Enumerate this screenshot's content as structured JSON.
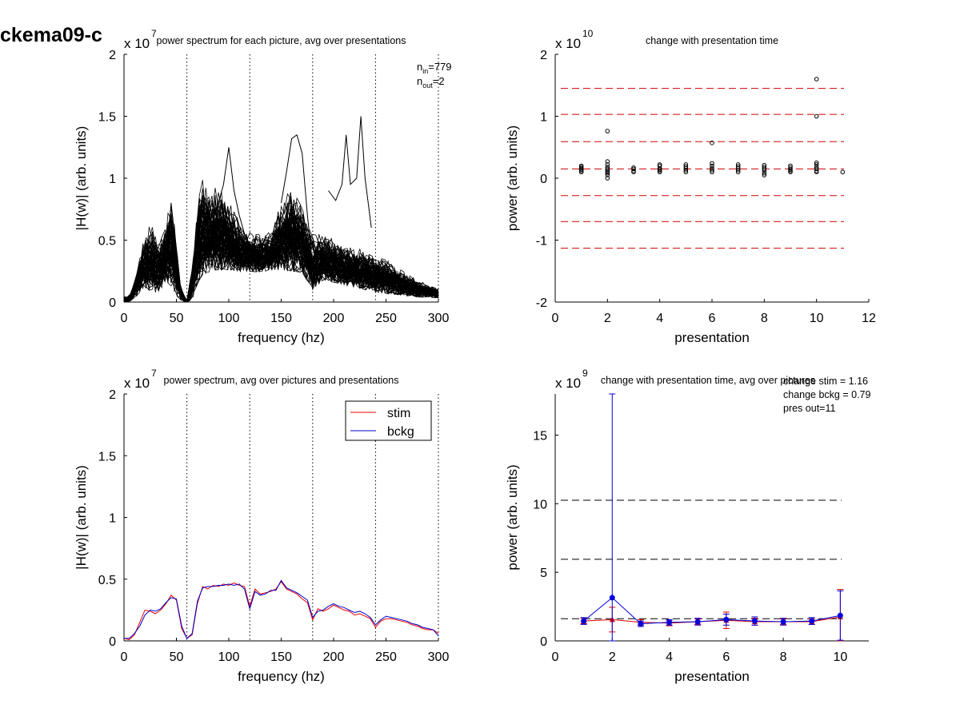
{
  "figure": {
    "label": "ckema09-c"
  },
  "chart_data": [
    {
      "type": "line",
      "title": "power spectrum for each picture, avg over presentations",
      "xlabel": "frequency (hz)",
      "ylabel": "|H(w)| (arb. units)",
      "exponent": "7",
      "xlim": [
        0,
        300
      ],
      "ylim": [
        0,
        2
      ],
      "xticks": [
        0,
        50,
        100,
        150,
        200,
        250,
        300
      ],
      "yticks": [
        0,
        0.5,
        1,
        1.5,
        2
      ],
      "ytick_labels": [
        "0",
        "0.5",
        "1",
        "1.5",
        "2"
      ],
      "vlines": [
        60,
        120,
        180,
        240,
        300
      ],
      "annotation": {
        "n_in": "779",
        "n_out": "2",
        "n_label": "n",
        "in_sub": "in",
        "out_sub": "out"
      },
      "envelope": {
        "x": [
          0,
          5,
          12,
          17,
          20,
          23,
          27,
          30,
          33,
          37,
          40,
          43,
          46,
          50,
          55,
          60,
          65,
          70,
          75,
          80,
          90,
          100,
          110,
          120,
          130,
          140,
          150,
          160,
          170,
          180,
          190,
          200,
          210,
          220,
          230,
          240,
          250,
          260,
          270,
          280,
          290,
          300
        ],
        "low": [
          0.0,
          0.0,
          0.05,
          0.1,
          0.12,
          0.1,
          0.08,
          0.07,
          0.09,
          0.12,
          0.15,
          0.15,
          0.12,
          0.05,
          0.01,
          0.0,
          0.02,
          0.15,
          0.22,
          0.24,
          0.26,
          0.26,
          0.25,
          0.25,
          0.24,
          0.26,
          0.26,
          0.25,
          0.24,
          0.1,
          0.18,
          0.16,
          0.14,
          0.12,
          0.1,
          0.08,
          0.07,
          0.06,
          0.05,
          0.04,
          0.04,
          0.03
        ],
        "high": [
          0.05,
          0.05,
          0.25,
          0.5,
          0.6,
          0.68,
          0.7,
          0.62,
          0.55,
          0.6,
          0.72,
          0.9,
          1.0,
          0.5,
          0.1,
          0.02,
          0.3,
          0.9,
          1.1,
          1.0,
          1.0,
          0.9,
          0.7,
          0.6,
          0.58,
          0.6,
          0.9,
          1.0,
          0.85,
          0.6,
          0.6,
          0.55,
          0.5,
          0.48,
          0.45,
          0.4,
          0.38,
          0.3,
          0.25,
          0.2,
          0.15,
          0.12
        ]
      },
      "outliers": [
        {
          "x": [
            150,
            155,
            160,
            165,
            170,
            175,
            180
          ],
          "y": [
            0.8,
            1.05,
            1.32,
            1.35,
            1.2,
            0.7,
            0.3
          ]
        },
        {
          "x": [
            195,
            202,
            208,
            212,
            216,
            222,
            226,
            230,
            236
          ],
          "y": [
            0.9,
            0.82,
            0.95,
            1.35,
            0.95,
            1.0,
            1.5,
            1.0,
            0.6
          ]
        },
        {
          "x": [
            85,
            90,
            95,
            100,
            105,
            110,
            115
          ],
          "y": [
            0.55,
            0.8,
            0.95,
            1.25,
            0.9,
            0.7,
            0.55
          ]
        }
      ]
    },
    {
      "type": "scatter",
      "title": "change with presentation time",
      "xlabel": "presentation",
      "ylabel": "power (arb. units)",
      "exponent": "10",
      "xlim": [
        0,
        12
      ],
      "ylim": [
        -2,
        2
      ],
      "xticks": [
        0,
        2,
        4,
        6,
        8,
        10,
        12
      ],
      "yticks": [
        -2,
        -1,
        0,
        1,
        2
      ],
      "ytick_labels": [
        "-2",
        "-1",
        "0",
        "1",
        "2"
      ],
      "hlines": [
        1.45,
        1.03,
        0.59,
        0.15,
        -0.28,
        -0.7,
        -1.13
      ],
      "hline_color": "#d00000",
      "points": [
        {
          "x": 1,
          "y": [
            0.1,
            0.12,
            0.14,
            0.16,
            0.18,
            0.2
          ]
        },
        {
          "x": 2,
          "y": [
            0.05,
            0.08,
            0.1,
            0.12,
            0.15,
            0.18,
            0.22,
            0.27,
            0.76,
            0.0
          ]
        },
        {
          "x": 3,
          "y": [
            0.1,
            0.12,
            0.15,
            0.17
          ]
        },
        {
          "x": 4,
          "y": [
            0.1,
            0.12,
            0.14,
            0.16,
            0.2,
            0.22
          ]
        },
        {
          "x": 5,
          "y": [
            0.1,
            0.13,
            0.16,
            0.19,
            0.22
          ]
        },
        {
          "x": 6,
          "y": [
            0.1,
            0.13,
            0.16,
            0.2,
            0.24,
            0.57
          ]
        },
        {
          "x": 7,
          "y": [
            0.1,
            0.13,
            0.16,
            0.19,
            0.22
          ]
        },
        {
          "x": 8,
          "y": [
            0.05,
            0.08,
            0.12,
            0.15,
            0.18,
            0.21
          ]
        },
        {
          "x": 9,
          "y": [
            0.1,
            0.12,
            0.14,
            0.17,
            0.2
          ]
        },
        {
          "x": 10,
          "y": [
            0.1,
            0.12,
            0.15,
            0.18,
            0.22,
            0.25,
            1.0,
            1.6
          ]
        },
        {
          "x": 11,
          "y": [
            0.1
          ]
        }
      ]
    },
    {
      "type": "line",
      "title": "power spectrum, avg over pictures and presentations",
      "xlabel": "frequency (hz)",
      "ylabel": "|H(w)| (arb. units)",
      "exponent": "7",
      "xlim": [
        0,
        300
      ],
      "ylim": [
        0,
        2
      ],
      "xticks": [
        0,
        50,
        100,
        150,
        200,
        250,
        300
      ],
      "yticks": [
        0,
        0.5,
        1,
        1.5,
        2
      ],
      "ytick_labels": [
        "0",
        "0.5",
        "1",
        "1.5",
        "2"
      ],
      "vlines": [
        60,
        120,
        180,
        240,
        300
      ],
      "legend": {
        "position": "top-right"
      },
      "x": [
        0,
        5,
        10,
        15,
        20,
        25,
        30,
        35,
        40,
        45,
        50,
        55,
        60,
        65,
        70,
        75,
        80,
        85,
        90,
        95,
        100,
        105,
        110,
        115,
        120,
        125,
        130,
        135,
        140,
        145,
        150,
        155,
        160,
        165,
        170,
        175,
        180,
        185,
        190,
        195,
        200,
        205,
        210,
        215,
        220,
        225,
        230,
        235,
        240,
        245,
        250,
        255,
        260,
        265,
        270,
        275,
        280,
        285,
        290,
        295,
        300
      ],
      "series": [
        {
          "name": "stim",
          "color": "#ee0000",
          "values": [
            0.02,
            0.01,
            0.05,
            0.15,
            0.25,
            0.24,
            0.22,
            0.25,
            0.3,
            0.37,
            0.33,
            0.1,
            0.02,
            0.05,
            0.3,
            0.44,
            0.42,
            0.45,
            0.44,
            0.46,
            0.45,
            0.47,
            0.45,
            0.44,
            0.28,
            0.42,
            0.38,
            0.39,
            0.4,
            0.42,
            0.48,
            0.42,
            0.4,
            0.38,
            0.34,
            0.31,
            0.17,
            0.26,
            0.24,
            0.26,
            0.29,
            0.27,
            0.25,
            0.24,
            0.21,
            0.22,
            0.2,
            0.18,
            0.11,
            0.16,
            0.18,
            0.18,
            0.17,
            0.16,
            0.15,
            0.13,
            0.12,
            0.1,
            0.09,
            0.09,
            0.06
          ]
        },
        {
          "name": "bckg",
          "color": "#0000cc",
          "values": [
            0.02,
            0.02,
            0.06,
            0.12,
            0.21,
            0.25,
            0.24,
            0.26,
            0.31,
            0.35,
            0.34,
            0.12,
            0.02,
            0.06,
            0.32,
            0.43,
            0.44,
            0.44,
            0.45,
            0.45,
            0.46,
            0.45,
            0.46,
            0.42,
            0.26,
            0.4,
            0.37,
            0.38,
            0.41,
            0.41,
            0.49,
            0.43,
            0.41,
            0.39,
            0.36,
            0.33,
            0.19,
            0.24,
            0.25,
            0.28,
            0.3,
            0.28,
            0.27,
            0.25,
            0.23,
            0.24,
            0.22,
            0.19,
            0.13,
            0.17,
            0.2,
            0.19,
            0.18,
            0.17,
            0.16,
            0.14,
            0.13,
            0.11,
            0.1,
            0.09,
            0.04
          ]
        }
      ]
    },
    {
      "type": "line",
      "title": "change with presentation time, avg over pictures",
      "xlabel": "presentation",
      "ylabel": "power (arb. units)",
      "exponent": "9",
      "xlim": [
        0,
        11
      ],
      "ylim": [
        0,
        18
      ],
      "xticks": [
        0,
        2,
        4,
        6,
        8,
        10
      ],
      "yticks": [
        0,
        5,
        10,
        15
      ],
      "ytick_labels": [
        "0",
        "5",
        "10",
        "15"
      ],
      "hlines": [
        10.25,
        5.95,
        1.62
      ],
      "hline_color": "#000000",
      "annotations": [
        "change stim = 1.16",
        "change bckg = 0.79",
        "pres out=11"
      ],
      "x": [
        1,
        2,
        3,
        4,
        5,
        6,
        7,
        8,
        9,
        10
      ],
      "series": [
        {
          "name": "stim",
          "color": "#dd0000",
          "values": [
            1.45,
            1.55,
            1.35,
            1.3,
            1.4,
            1.5,
            1.4,
            1.4,
            1.4,
            1.75
          ],
          "err": [
            0.2,
            0.9,
            0.2,
            0.2,
            0.2,
            0.6,
            0.25,
            0.2,
            0.2,
            2.0
          ]
        },
        {
          "name": "bckg",
          "color": "#0000dd",
          "values": [
            1.45,
            3.15,
            1.25,
            1.35,
            1.4,
            1.55,
            1.45,
            1.4,
            1.45,
            1.85
          ],
          "err": [
            0.25,
            15.0,
            0.2,
            0.2,
            0.25,
            0.4,
            0.3,
            0.25,
            0.25,
            1.8
          ]
        }
      ]
    }
  ]
}
